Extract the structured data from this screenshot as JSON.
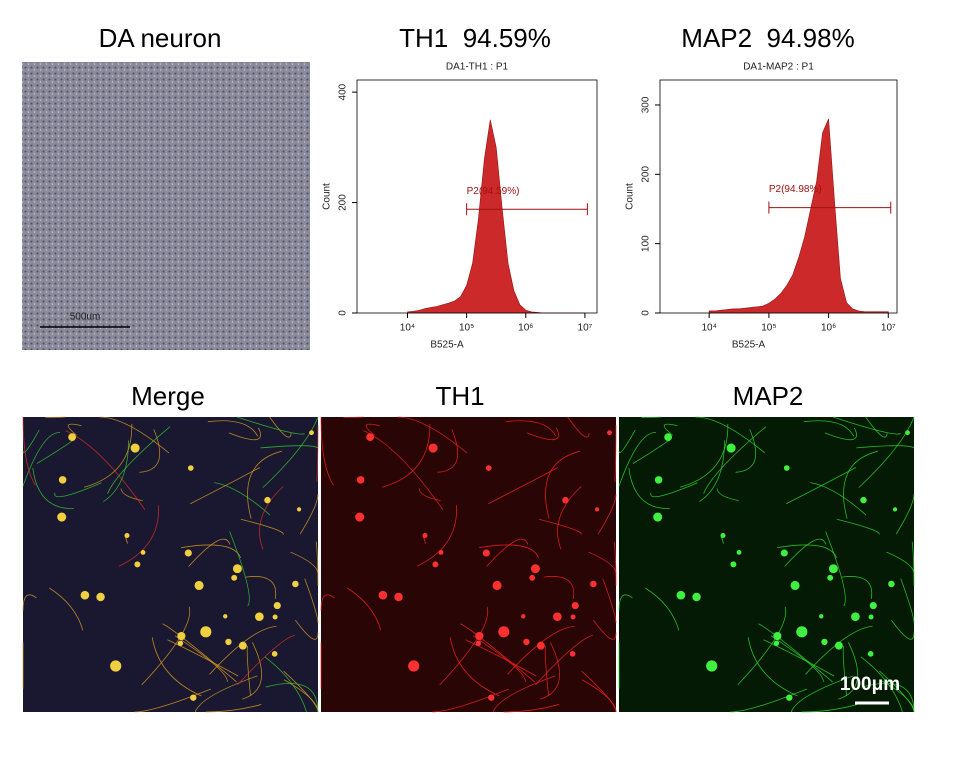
{
  "panels": {
    "phase_title": "DA neuron",
    "phase_scale": "500um",
    "th1_flow_title": "TH1  94.59%",
    "map2_flow_title": "MAP2  94.98%",
    "merge_title": "Merge",
    "th1_title": "TH1",
    "map2_title": "MAP2",
    "fluor_scale": "100μm"
  },
  "chart_data": [
    {
      "type": "area",
      "title": "DA1-TH1 : P1",
      "x_label": "B525-A",
      "y_label": "Count",
      "color": "#cc2a2a",
      "log_x": true,
      "x": [
        10000,
        12600,
        15800,
        20000,
        25100,
        31600,
        39800,
        50100,
        63100,
        79400,
        100000,
        126000,
        158000,
        200000,
        251000,
        316000,
        398000,
        501000,
        631000,
        794000,
        1000000,
        1260000,
        1580000,
        2000000,
        2510000,
        3160000,
        3980000,
        5010000,
        6310000,
        7940000,
        10000000
      ],
      "values": [
        2,
        3,
        5,
        8,
        10,
        12,
        15,
        18,
        22,
        30,
        50,
        90,
        170,
        280,
        350,
        300,
        190,
        90,
        40,
        15,
        5,
        2,
        1,
        0,
        0,
        0,
        0,
        0,
        0,
        0,
        0
      ],
      "xlim": [
        1400,
        16000000
      ],
      "ylim": [
        0,
        422
      ],
      "xticks": [
        {
          "value": 10000,
          "label": "10⁴"
        },
        {
          "value": 100000,
          "label": "10⁵"
        },
        {
          "value": 1000000,
          "label": "10⁶"
        },
        {
          "value": 10000000,
          "label": "10⁷"
        }
      ],
      "yticks": [
        0,
        200,
        400
      ],
      "gate": {
        "label": "P2(94.59%)",
        "x": [
          100000,
          11000000
        ],
        "y": 188
      }
    },
    {
      "type": "area",
      "title": "DA1-MAP2 : P1",
      "x_label": "B525-A",
      "y_label": "Count",
      "color": "#cc2a2a",
      "log_x": true,
      "x": [
        10000,
        12600,
        15800,
        20000,
        25100,
        31600,
        39800,
        50100,
        63100,
        79400,
        100000,
        126000,
        158000,
        200000,
        251000,
        316000,
        398000,
        501000,
        631000,
        794000,
        1000000,
        1260000,
        1580000,
        2000000,
        2510000,
        3160000,
        3980000,
        5010000,
        6310000,
        7940000,
        10000000
      ],
      "values": [
        3,
        3,
        4,
        5,
        6,
        6,
        7,
        8,
        9,
        10,
        14,
        20,
        28,
        40,
        55,
        80,
        110,
        150,
        190,
        260,
        280,
        160,
        50,
        15,
        6,
        3,
        2,
        2,
        2,
        2,
        2
      ],
      "xlim": [
        1500,
        14000000
      ],
      "ylim": [
        0,
        336
      ],
      "xticks": [
        {
          "value": 10000,
          "label": "10⁴"
        },
        {
          "value": 100000,
          "label": "10⁵"
        },
        {
          "value": 1000000,
          "label": "10⁶"
        },
        {
          "value": 10000000,
          "label": "10⁷"
        }
      ],
      "yticks": [
        0,
        100,
        200,
        300
      ],
      "gate": {
        "label": "P2(94.98%)",
        "x": [
          100000,
          11000000
        ],
        "y": 152
      }
    }
  ]
}
